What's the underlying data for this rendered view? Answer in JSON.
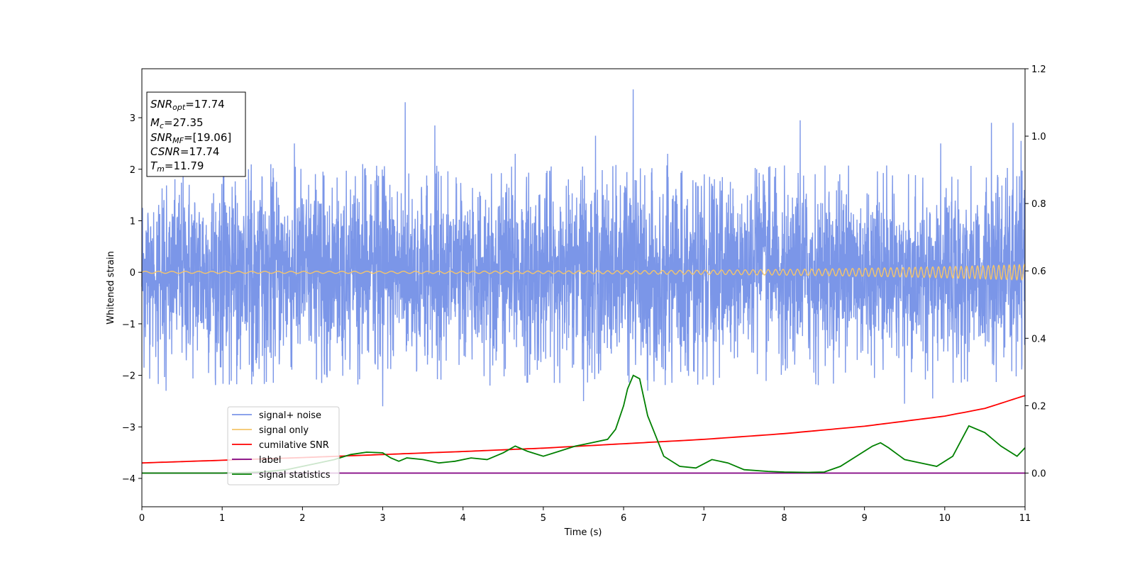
{
  "chart_data": {
    "type": "line",
    "xlabel": "Time (s)",
    "ylabel": "Whitened strain",
    "xlim": [
      0,
      11
    ],
    "ylim": [
      -4.55,
      3.95
    ],
    "y2lim": [
      -0.1,
      1.2
    ],
    "x_ticks": [
      "0",
      "1",
      "2",
      "3",
      "4",
      "5",
      "6",
      "7",
      "8",
      "9",
      "10",
      "11"
    ],
    "y_ticks": [
      "3",
      "2",
      "1",
      "0",
      "−1",
      "−2",
      "−3",
      "−4"
    ],
    "y_tick_values": [
      3,
      2,
      1,
      0,
      -1,
      -2,
      -3,
      -4
    ],
    "y2_ticks": [
      "0.0",
      "0.2",
      "0.4",
      "0.6",
      "0.8",
      "1.0",
      "1.2"
    ],
    "y2_tick_values": [
      0.0,
      0.2,
      0.4,
      0.6,
      0.8,
      1.0,
      1.2
    ],
    "grid": false,
    "legend_placement": "lower-left",
    "info_box": {
      "snr_opt_var": "SNR",
      "snr_opt_sub": "opt",
      "snr_opt_value": "=17.74",
      "mc_var": "M",
      "mc_sub": "c",
      "mc_value": "=27.35",
      "snr_mf_var": "SNR",
      "snr_mf_sub": "MF",
      "snr_mf_value": "=[19.06]",
      "csnr_var": "CSNR",
      "csnr_value": "=17.74",
      "tm_var": "T",
      "tm_sub": "m",
      "tm_value": "=11.79"
    },
    "series": [
      {
        "name": "signal+ noise",
        "axis": "left",
        "color": "#7b96e8",
        "noise_amplitude": 1.45,
        "spikes": [
          [
            1.9,
            2.5
          ],
          [
            2.75,
            2.1
          ],
          [
            3.28,
            3.3
          ],
          [
            3.65,
            2.85
          ],
          [
            5.65,
            2.65
          ],
          [
            6.12,
            3.55
          ],
          [
            6.3,
            -2.3
          ],
          [
            6.55,
            2.3
          ],
          [
            8.2,
            2.95
          ],
          [
            4.65,
            2.3
          ],
          [
            9.95,
            2.5
          ],
          [
            10.58,
            2.9
          ],
          [
            10.85,
            2.9
          ],
          [
            10.95,
            2.55
          ],
          [
            3.0,
            -2.6
          ],
          [
            5.5,
            -2.5
          ],
          [
            9.5,
            -2.55
          ],
          [
            9.85,
            -2.45
          ],
          [
            0.3,
            -2.3
          ]
        ]
      },
      {
        "name": "signal only",
        "axis": "left",
        "color": "#f5c56a",
        "start_amplitude": 0.02,
        "end_amplitude": 0.15
      },
      {
        "name": "cumilative SNR",
        "axis": "right",
        "color": "#ff0000",
        "x": [
          0,
          1,
          2,
          3,
          4,
          5,
          6,
          7,
          8,
          9,
          10,
          10.5,
          11
        ],
        "values": [
          0.03,
          0.038,
          0.046,
          0.055,
          0.064,
          0.074,
          0.087,
          0.1,
          0.117,
          0.139,
          0.169,
          0.192,
          0.23
        ]
      },
      {
        "name": "label",
        "axis": "right",
        "color": "#800080",
        "x": [
          0,
          11
        ],
        "values": [
          0.0,
          0.0
        ]
      },
      {
        "name": "signal statistics",
        "axis": "right",
        "color": "#008000",
        "x": [
          0,
          0.5,
          1.0,
          1.5,
          1.8,
          2.0,
          2.2,
          2.4,
          2.6,
          2.8,
          3.0,
          3.1,
          3.2,
          3.3,
          3.5,
          3.7,
          3.9,
          4.1,
          4.3,
          4.5,
          4.65,
          4.8,
          5.0,
          5.2,
          5.4,
          5.5,
          5.6,
          5.8,
          5.9,
          6.0,
          6.05,
          6.12,
          6.2,
          6.3,
          6.4,
          6.5,
          6.7,
          6.9,
          7.1,
          7.3,
          7.5,
          7.8,
          8.0,
          8.3,
          8.5,
          8.7,
          8.9,
          9.1,
          9.2,
          9.3,
          9.5,
          9.7,
          9.9,
          10.1,
          10.3,
          10.5,
          10.7,
          10.9,
          11.0
        ],
        "values": [
          0.0,
          0.0,
          0.0,
          0.003,
          0.01,
          0.02,
          0.03,
          0.04,
          0.055,
          0.062,
          0.06,
          0.045,
          0.035,
          0.045,
          0.04,
          0.03,
          0.035,
          0.045,
          0.04,
          0.06,
          0.08,
          0.065,
          0.05,
          0.065,
          0.08,
          0.085,
          0.09,
          0.1,
          0.13,
          0.2,
          0.25,
          0.29,
          0.28,
          0.17,
          0.11,
          0.05,
          0.02,
          0.015,
          0.04,
          0.03,
          0.01,
          0.005,
          0.003,
          0.002,
          0.003,
          0.02,
          0.05,
          0.08,
          0.09,
          0.075,
          0.04,
          0.03,
          0.02,
          0.05,
          0.14,
          0.12,
          0.08,
          0.05,
          0.075
        ]
      }
    ]
  }
}
